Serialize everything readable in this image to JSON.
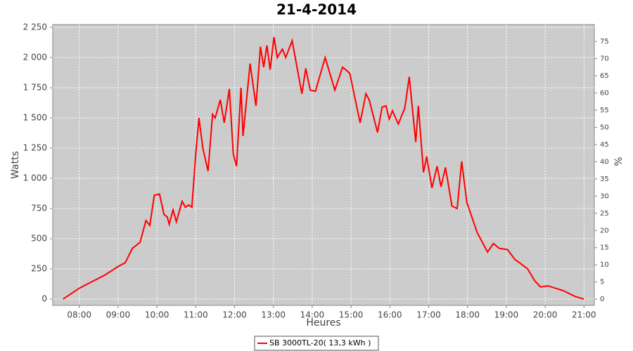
{
  "chart_data": {
    "type": "line",
    "title": "21-4-2014",
    "x_label": "Heures",
    "y_label": "Watts",
    "y2_label": "%",
    "x": [
      "07:35",
      "08:00",
      "08:18",
      "08:40",
      "09:00",
      "09:11",
      "09:22",
      "09:34",
      "09:43",
      "09:49",
      "09:56",
      "10:04",
      "10:11",
      "10:16",
      "10:19",
      "10:25",
      "10:30",
      "10:39",
      "10:44",
      "10:49",
      "10:54",
      "11:00",
      "11:05",
      "11:11",
      "11:19",
      "11:26",
      "11:30",
      "11:38",
      "11:44",
      "11:52",
      "11:58",
      "12:03",
      "12:10",
      "12:13",
      "12:24",
      "12:33",
      "12:40",
      "12:45",
      "12:50",
      "12:55",
      "13:01",
      "13:06",
      "13:14",
      "13:19",
      "13:29",
      "13:44",
      "13:50",
      "13:57",
      "14:05",
      "14:20",
      "14:35",
      "14:47",
      "14:58",
      "15:14",
      "15:23",
      "15:28",
      "15:41",
      "15:48",
      "15:54",
      "15:59",
      "16:04",
      "16:13",
      "16:23",
      "16:30",
      "16:40",
      "16:44",
      "16:52",
      "16:57",
      "17:05",
      "17:13",
      "17:19",
      "17:26",
      "17:36",
      "17:44",
      "17:51",
      "17:59",
      "18:15",
      "18:31",
      "18:40",
      "18:49",
      "19:02",
      "19:13",
      "19:33",
      "19:44",
      "19:53",
      "20:04",
      "20:28",
      "20:47",
      "21:00"
    ],
    "series": [
      {
        "name": "SB 3000TL-20( 13,3 kWh )",
        "color": "#ff0000",
        "values": [
          0,
          90,
          140,
          200,
          270,
          300,
          420,
          470,
          650,
          610,
          860,
          870,
          700,
          680,
          620,
          740,
          640,
          810,
          760,
          780,
          760,
          1200,
          1500,
          1250,
          1060,
          1530,
          1500,
          1650,
          1460,
          1740,
          1200,
          1100,
          1750,
          1350,
          1950,
          1600,
          2090,
          1920,
          2100,
          1900,
          2170,
          2000,
          2070,
          2000,
          2140,
          1700,
          1910,
          1730,
          1720,
          2000,
          1730,
          1920,
          1870,
          1460,
          1700,
          1650,
          1380,
          1590,
          1600,
          1490,
          1560,
          1450,
          1580,
          1840,
          1300,
          1600,
          1050,
          1180,
          920,
          1100,
          930,
          1090,
          770,
          750,
          1140,
          800,
          550,
          390,
          460,
          420,
          410,
          330,
          250,
          150,
          100,
          110,
          70,
          20,
          0
        ]
      }
    ],
    "xlim": [
      "07:19",
      "21:16"
    ],
    "xticks": [
      "08:00",
      "09:00",
      "10:00",
      "11:00",
      "12:00",
      "13:00",
      "14:00",
      "15:00",
      "16:00",
      "17:00",
      "18:00",
      "19:00",
      "20:00",
      "21:00"
    ],
    "ylim": [
      -52,
      2273
    ],
    "yticks": [
      0,
      250,
      500,
      750,
      {
        "value": 1000,
        "label": "1 000"
      },
      {
        "value": 1250,
        "label": "1 250"
      },
      {
        "value": 1500,
        "label": "1 500"
      },
      {
        "value": 1750,
        "label": "1 750"
      },
      {
        "value": 2000,
        "label": "2 000"
      },
      {
        "value": 2250,
        "label": "2 250"
      }
    ],
    "y2lim": [
      -1.8,
      79.9
    ],
    "y2ticks": [
      0,
      5,
      10,
      15,
      20,
      25,
      30,
      35,
      40,
      45,
      50,
      55,
      60,
      65,
      70,
      75
    ],
    "grid": true,
    "legend": "bottom"
  }
}
